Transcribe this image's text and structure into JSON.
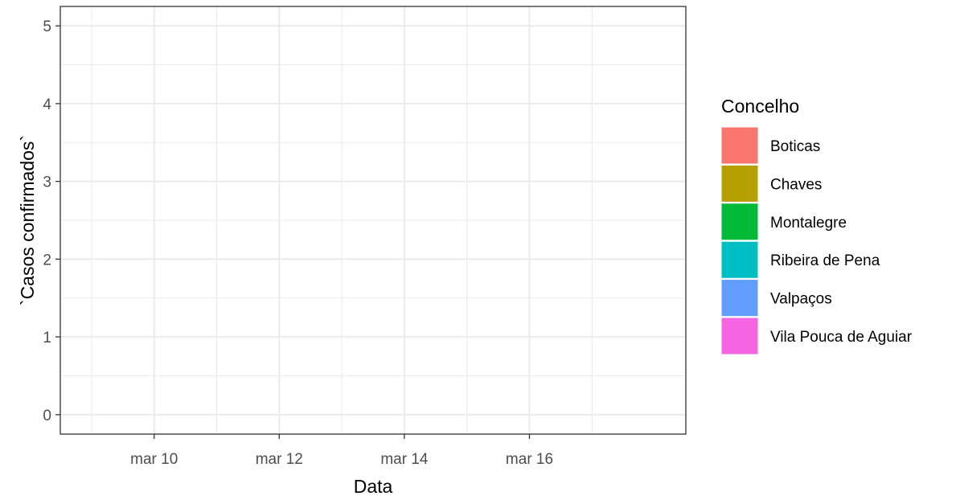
{
  "chart_data": {
    "type": "bar",
    "xlabel": "Data",
    "ylabel": "`Casos confirmados`",
    "x_ticks": [
      "mar 10",
      "mar 12",
      "mar 14",
      "mar 16"
    ],
    "x_tick_dates": [
      "2020-03-10",
      "2020-03-12",
      "2020-03-14",
      "2020-03-16"
    ],
    "xlim": [
      "2020-03-08 12:00",
      "2020-03-18 12:00"
    ],
    "y_ticks": [
      "0",
      "1",
      "2",
      "3",
      "4",
      "5"
    ],
    "ylim": [
      -0.25,
      5.25
    ],
    "grid": true,
    "legend": {
      "title": "Concelho",
      "position": "right",
      "entries": [
        {
          "label": "Boticas",
          "color": "#F8766D"
        },
        {
          "label": "Chaves",
          "color": "#B79F00"
        },
        {
          "label": "Montalegre",
          "color": "#00BA38"
        },
        {
          "label": "Ribeira de Pena",
          "color": "#00BFC4"
        },
        {
          "label": "Valpaços",
          "color": "#619CFF"
        },
        {
          "label": "Vila Pouca de Aguiar",
          "color": "#F564E3"
        }
      ]
    },
    "series": [
      {
        "name": "Boticas",
        "values": []
      },
      {
        "name": "Chaves",
        "values": []
      },
      {
        "name": "Montalegre",
        "values": []
      },
      {
        "name": "Ribeira de Pena",
        "values": []
      },
      {
        "name": "Valpaços",
        "values": []
      },
      {
        "name": "Vila Pouca de Aguiar",
        "values": []
      }
    ]
  }
}
